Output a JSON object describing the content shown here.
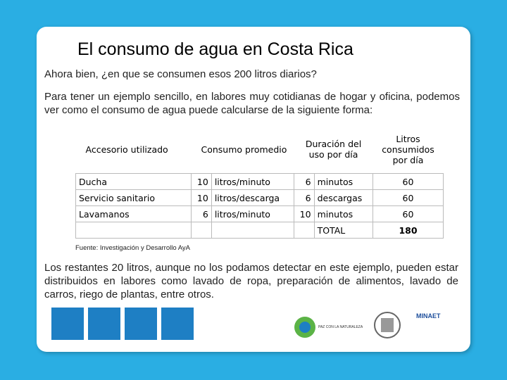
{
  "title": "El consumo de agua en Costa Rica",
  "intro": "Ahora bien, ¿en que se consumen esos 200 litros diarios?",
  "paragraph": "Para tener un ejemplo sencillo, en labores muy cotidianas de hogar y oficina, podemos ver como el consumo de agua puede calcularse de la siguiente forma:",
  "table": {
    "headers": [
      "Accesorio utilizado",
      "Consumo promedio",
      "Duración del uso por día",
      "Litros consumidos por día"
    ],
    "rows": [
      {
        "accessory": "Ducha",
        "amount": 10,
        "unit": "litros/minuto",
        "duration": 6,
        "duration_unit": "minutos",
        "liters": 60
      },
      {
        "accessory": "Servicio sanitario",
        "amount": 10,
        "unit": "litros/descarga",
        "duration": 6,
        "duration_unit": "descargas",
        "liters": 60
      },
      {
        "accessory": "Lavamanos",
        "amount": 6,
        "unit": "litros/minuto",
        "duration": 10,
        "duration_unit": "minutos",
        "liters": 60
      }
    ],
    "total": {
      "label": "TOTAL",
      "value": 180
    }
  },
  "source": "Fuente: Investigación y Desarrollo AyA",
  "closing": "Los restantes 20 litros, aunque no los podamos detectar en este ejemplo, pueden estar distribuidos en labores como lavado de ropa, preparación de alimentos, lavado de carros, riego de plantas, entre otros.",
  "logos": {
    "peace": "PAZ CON LA NATURALEZA",
    "minaet": "MINAET"
  }
}
